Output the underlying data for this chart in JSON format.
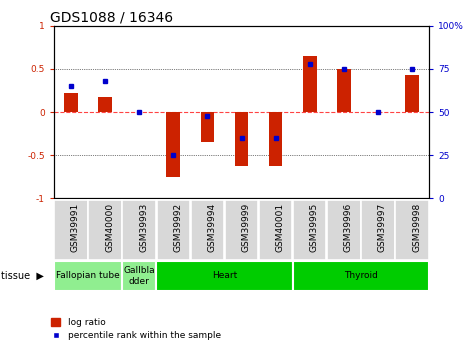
{
  "title": "GDS1088 / 16346",
  "samples": [
    "GSM39991",
    "GSM40000",
    "GSM39993",
    "GSM39992",
    "GSM39994",
    "GSM39999",
    "GSM40001",
    "GSM39995",
    "GSM39996",
    "GSM39997",
    "GSM39998"
  ],
  "log_ratio": [
    0.22,
    0.18,
    0.0,
    -0.75,
    -0.35,
    -0.62,
    -0.62,
    0.65,
    0.5,
    0.0,
    0.43
  ],
  "percentile": [
    65,
    68,
    50,
    25,
    48,
    35,
    35,
    78,
    75,
    50,
    75
  ],
  "bar_color": "#CC2200",
  "dot_color": "#0000CC",
  "y_left_label_color": "#CC2200",
  "y_right_label_color": "#0000CC",
  "ylim_left": [
    -1,
    1
  ],
  "ylim_right": [
    0,
    100
  ],
  "hline_color": "#FF4444",
  "grid_color": "#000000",
  "bg_color": "#ffffff",
  "title_fontsize": 10,
  "tick_fontsize": 6.5,
  "label_fontsize": 7,
  "light_green": "#90EE90",
  "dark_green": "#00CC00",
  "tissue_groups": [
    {
      "label": "Fallopian tube",
      "start": 0,
      "end": 2,
      "color": "#90EE90"
    },
    {
      "label": "Gallbla\ndder",
      "start": 2,
      "end": 3,
      "color": "#90EE90"
    },
    {
      "label": "Heart",
      "start": 3,
      "end": 7,
      "color": "#00CC00"
    },
    {
      "label": "Thyroid",
      "start": 7,
      "end": 11,
      "color": "#00CC00"
    }
  ]
}
